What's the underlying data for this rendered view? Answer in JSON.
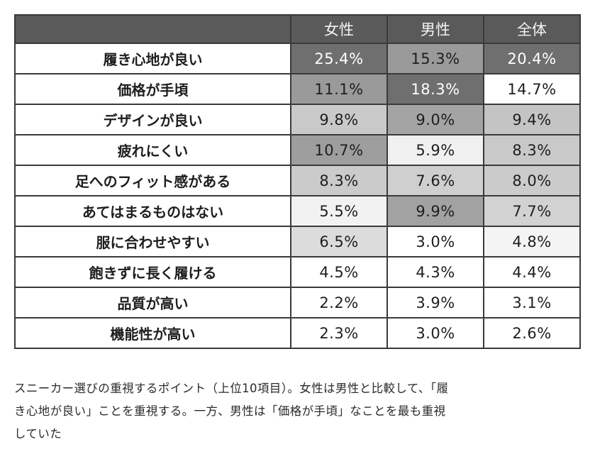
{
  "table": {
    "headers": [
      "",
      "女性",
      "男性",
      "全体"
    ],
    "rows": [
      {
        "label": "履き心地が良い",
        "values": [
          "25.4%",
          "15.3%",
          "20.4%"
        ],
        "shades": [
          "#6f6f6f",
          "#9a9a9a",
          "#6f6f6f"
        ],
        "text_colors": [
          "#ffffff",
          "#1e1e1e",
          "#ffffff"
        ]
      },
      {
        "label": "価格が手頃",
        "values": [
          "11.1%",
          "18.3%",
          "14.7%"
        ],
        "shades": [
          "#9a9a9a",
          "#6f6f6f",
          "#ffffff"
        ],
        "text_colors": [
          "#1e1e1e",
          "#ffffff",
          "#1e1e1e"
        ]
      },
      {
        "label": "デザインが良い",
        "values": [
          "9.8%",
          "9.0%",
          "9.4%"
        ],
        "shades": [
          "#c9c9c9",
          "#a4a4a4",
          "#c4c4c4"
        ],
        "text_colors": [
          "#1e1e1e",
          "#1e1e1e",
          "#1e1e1e"
        ]
      },
      {
        "label": "疲れにくい",
        "values": [
          "10.7%",
          "5.9%",
          "8.3%"
        ],
        "shades": [
          "#9e9e9e",
          "#f0f0f0",
          "#c9c9c9"
        ],
        "text_colors": [
          "#1e1e1e",
          "#1e1e1e",
          "#1e1e1e"
        ]
      },
      {
        "label": "足へのフィット感がある",
        "values": [
          "8.3%",
          "7.6%",
          "8.0%"
        ],
        "shades": [
          "#cbcbcb",
          "#cfcfcf",
          "#cbcbcb"
        ],
        "text_colors": [
          "#1e1e1e",
          "#1e1e1e",
          "#1e1e1e"
        ]
      },
      {
        "label": "あてはまるものはない",
        "values": [
          "5.5%",
          "9.9%",
          "7.7%"
        ],
        "shades": [
          "#f2f2f2",
          "#a2a2a2",
          "#d2d2d2"
        ],
        "text_colors": [
          "#1e1e1e",
          "#1e1e1e",
          "#1e1e1e"
        ]
      },
      {
        "label": "服に合わせやすい",
        "values": [
          "6.5%",
          "3.0%",
          "4.8%"
        ],
        "shades": [
          "#dcdcdc",
          "#ffffff",
          "#f4f4f4"
        ],
        "text_colors": [
          "#1e1e1e",
          "#1e1e1e",
          "#1e1e1e"
        ]
      },
      {
        "label": "飽きずに長く履ける",
        "values": [
          "4.5%",
          "4.3%",
          "4.4%"
        ],
        "shades": [
          "#ffffff",
          "#ffffff",
          "#ffffff"
        ],
        "text_colors": [
          "#1e1e1e",
          "#1e1e1e",
          "#1e1e1e"
        ]
      },
      {
        "label": "品質が高い",
        "values": [
          "2.2%",
          "3.9%",
          "3.1%"
        ],
        "shades": [
          "#ffffff",
          "#ffffff",
          "#ffffff"
        ],
        "text_colors": [
          "#1e1e1e",
          "#1e1e1e",
          "#1e1e1e"
        ]
      },
      {
        "label": "機能性が高い",
        "values": [
          "2.3%",
          "3.0%",
          "2.6%"
        ],
        "shades": [
          "#ffffff",
          "#ffffff",
          "#ffffff"
        ],
        "text_colors": [
          "#1e1e1e",
          "#1e1e1e",
          "#1e1e1e"
        ]
      }
    ]
  },
  "caption": {
    "line1": "スニーカー選びの重視するポイント（上位10項目）。女性は男性と比較して、「履",
    "line2": "き心地が良い」ことを重視する。一方、男性は「価格が手頃」なことを最も重視",
    "line3": "していた"
  }
}
